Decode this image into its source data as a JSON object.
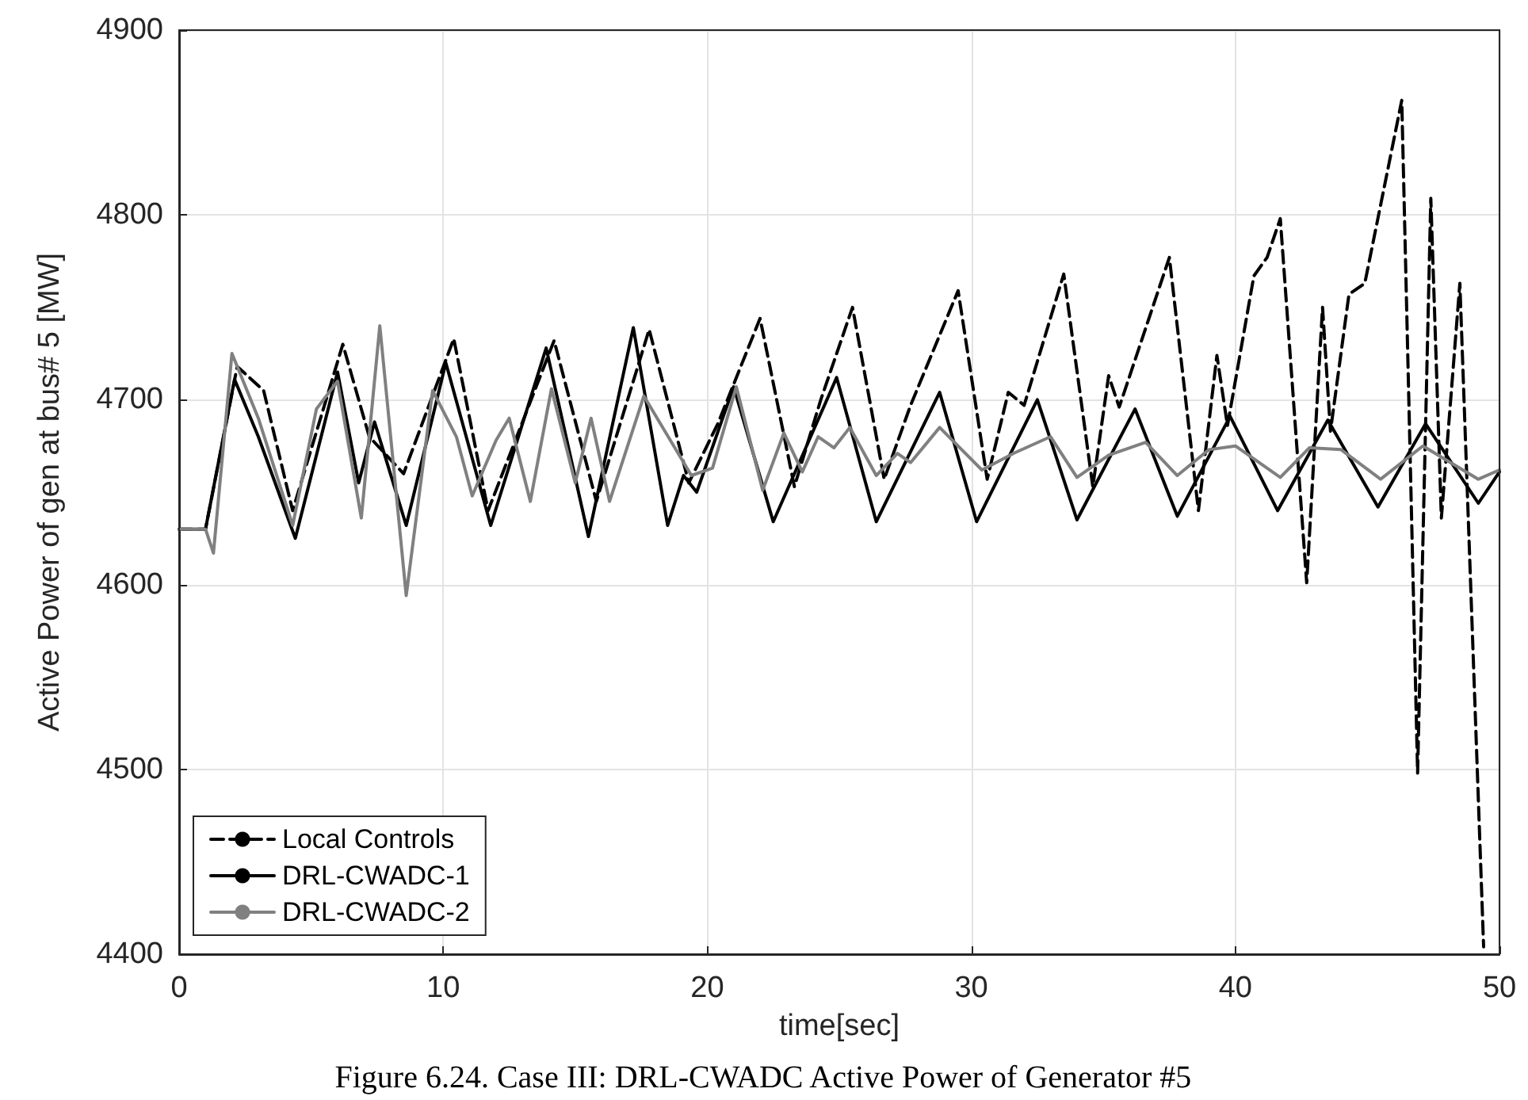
{
  "chart_data": {
    "type": "line",
    "xlabel": "time[sec]",
    "ylabel": "Active Power of gen at bus# 5 [MW]",
    "annotations": [
      "Figure 6.24. Case III: DRL-CWADC Active Power of Generator #5"
    ],
    "xlim": [
      0,
      50
    ],
    "xticks": [
      0,
      10,
      20,
      30,
      40,
      50
    ],
    "ylim": [
      4400,
      4900
    ],
    "yticks": [
      4400,
      4500,
      4600,
      4700,
      4800,
      4900
    ],
    "grid": true,
    "legend": "bottom left",
    "marker": "none",
    "series": [
      {
        "name": "Local Controls",
        "color": "#000000",
        "line_style": "dashed",
        "x": [
          0,
          1,
          2.2,
          3.2,
          4.3,
          6.2,
          7.2,
          8.5,
          10.4,
          11.7,
          14.2,
          15.8,
          17.8,
          19.3,
          20.4,
          22.0,
          23.3,
          24.3,
          25.5,
          26.7,
          27.7,
          29.5,
          30.6,
          31.4,
          32.0,
          33.5,
          34.6,
          35.2,
          35.6,
          37.5,
          38.6,
          39.3,
          39.7,
          40.7,
          41.2,
          41.7,
          42.7,
          43.3,
          43.6,
          44.3,
          44.9,
          46.3,
          46.9,
          47.4,
          47.8,
          48.5,
          49.4
        ],
        "values": [
          4630,
          4630,
          4718,
          4705,
          4640,
          4730,
          4680,
          4660,
          4733,
          4640,
          4732,
          4645,
          4738,
          4655,
          4687,
          4744,
          4653,
          4700,
          4750,
          4657,
          4697,
          4759,
          4657,
          4704,
          4697,
          4768,
          4653,
          4713,
          4696,
          4777,
          4640,
          4724,
          4686,
          4767,
          4777,
          4798,
          4601,
          4750,
          4683,
          4757,
          4763,
          4862,
          4498,
          4809,
          4636,
          4763,
          4404
        ]
      },
      {
        "name": "DRL-CWADC-1",
        "color": "#000000",
        "line_style": "solid",
        "x": [
          0,
          1,
          2.1,
          3,
          4.4,
          6,
          6.8,
          7.4,
          8.6,
          10.1,
          11.8,
          13.9,
          15.5,
          17.2,
          18.5,
          19.1,
          19.6,
          21.0,
          22.5,
          24.9,
          26.4,
          28.8,
          30.2,
          32.5,
          34.0,
          36.2,
          37.8,
          39.8,
          41.6,
          43.5,
          45.4,
          47.2,
          49.2,
          50
        ],
        "values": [
          4630,
          4630,
          4711,
          4680,
          4625,
          4715,
          4655,
          4688,
          4632,
          4720,
          4632,
          4728,
          4626,
          4739,
          4632,
          4659,
          4650,
          4707,
          4634,
          4712,
          4634,
          4704,
          4634,
          4700,
          4635,
          4695,
          4637,
          4691,
          4640,
          4689,
          4642,
          4687,
          4644,
          4661
        ]
      },
      {
        "name": "DRL-CWADC-2",
        "color": "#808080",
        "line_style": "solid",
        "x": [
          0,
          1,
          1.3,
          2.0,
          3,
          4.3,
          5.2,
          6.0,
          6.9,
          7.6,
          8.6,
          9.6,
          10.5,
          11.1,
          12,
          12.5,
          13.3,
          14.1,
          15,
          15.6,
          16.3,
          17.6,
          19.4,
          20.2,
          21.1,
          22.1,
          22.9,
          23.6,
          24.2,
          24.8,
          25.4,
          26.4,
          27.2,
          27.7,
          28.8,
          30.4,
          31.6,
          33.0,
          34.0,
          35.2,
          36.6,
          37.8,
          39.0,
          40.0,
          41.7,
          42.8,
          44.0,
          45.5,
          47.1,
          49.2,
          50
        ],
        "values": [
          4630,
          4630,
          4617,
          4725,
          4690,
          4632,
          4695,
          4710,
          4636,
          4740,
          4594,
          4705,
          4680,
          4648,
          4678,
          4690,
          4645,
          4706,
          4655,
          4690,
          4645,
          4702,
          4659,
          4663,
          4707,
          4651,
          4682,
          4661,
          4680,
          4674,
          4685,
          4659,
          4671,
          4666,
          4685,
          4662,
          4671,
          4680,
          4658,
          4670,
          4677,
          4659,
          4673,
          4675,
          4658,
          4674,
          4673,
          4657,
          4675,
          4657,
          4662
        ]
      }
    ]
  }
}
